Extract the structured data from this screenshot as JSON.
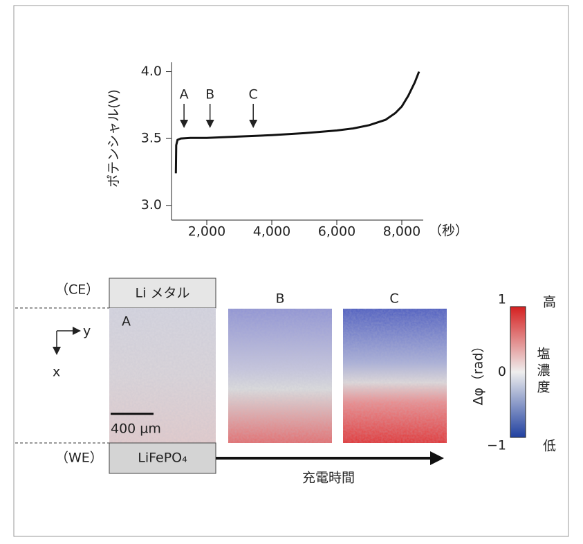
{
  "chart_data": {
    "type": "line",
    "x": [
      1050,
      1060,
      1100,
      1200,
      1500,
      2000,
      3000,
      4000,
      5000,
      6000,
      6500,
      7000,
      7500,
      7800,
      8000,
      8200,
      8400,
      8530
    ],
    "values": [
      3.24,
      3.45,
      3.49,
      3.5,
      3.505,
      3.505,
      3.515,
      3.525,
      3.54,
      3.56,
      3.575,
      3.6,
      3.64,
      3.69,
      3.74,
      3.82,
      3.92,
      4.0
    ],
    "color": "#111111",
    "y_label": "ポテンシャル(V)",
    "x_label": "（秒）",
    "xlim": [
      915,
      8660
    ],
    "ylim": [
      2.89,
      4.07
    ],
    "xticks": [
      {
        "value": 2000,
        "label": "2,000"
      },
      {
        "value": 4000,
        "label": "4,000"
      },
      {
        "value": 6000,
        "label": "6,000"
      },
      {
        "value": 8000,
        "label": "8,000"
      }
    ],
    "yticks": [
      {
        "value": 3.0,
        "label": "3.0"
      },
      {
        "value": 3.5,
        "label": "3.5"
      },
      {
        "value": 4.0,
        "label": "4.0"
      }
    ],
    "annotations": [
      {
        "text": "A",
        "x": 1300
      },
      {
        "text": "B",
        "x": 2100
      },
      {
        "text": "C",
        "x": 3430
      }
    ]
  },
  "figure": {
    "ce_label": "（CE）",
    "we_label": "（WE）",
    "top_electrode": "Li メタル",
    "bottom_electrode": "LiFePO₄",
    "panel_labels": [
      "A",
      "B",
      "C"
    ],
    "axis_y": "y",
    "axis_x": "x",
    "scale_bar": "400 µm",
    "time_label": "充電時間",
    "colorbar": {
      "title": "Δφ（rad）",
      "ticks": [
        1,
        0,
        {
          "value": -1,
          "label": "−1"
        }
      ],
      "high": "高",
      "mid": "塩濃度",
      "low": "低"
    }
  }
}
